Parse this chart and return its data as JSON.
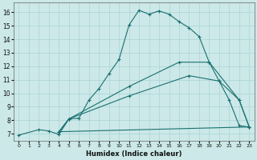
{
  "xlabel": "Humidex (Indice chaleur)",
  "bg_color": "#cce8e8",
  "line_color": "#1a7070",
  "grid_color": "#aad4d4",
  "xlim": [
    -0.5,
    23.5
  ],
  "ylim": [
    6.5,
    16.7
  ],
  "xticks": [
    0,
    1,
    2,
    3,
    4,
    5,
    6,
    7,
    8,
    9,
    10,
    11,
    12,
    13,
    14,
    15,
    16,
    17,
    18,
    19,
    20,
    21,
    22,
    23
  ],
  "yticks": [
    7,
    8,
    9,
    10,
    11,
    12,
    13,
    14,
    15,
    16
  ],
  "curve1_x": [
    0,
    2,
    3,
    4,
    5,
    6,
    7,
    8,
    9,
    10,
    11,
    12,
    13,
    14,
    15,
    16,
    17,
    18,
    19,
    20,
    21,
    22,
    23
  ],
  "curve1_y": [
    6.9,
    7.3,
    7.2,
    6.95,
    8.1,
    8.15,
    9.5,
    10.35,
    11.45,
    12.5,
    15.05,
    16.15,
    15.85,
    16.1,
    15.85,
    15.3,
    14.85,
    14.2,
    12.3,
    10.9,
    9.5,
    7.6,
    7.5
  ],
  "curve2_x": [
    4,
    5,
    11,
    16,
    19,
    22,
    23
  ],
  "curve2_y": [
    7.15,
    8.1,
    10.5,
    12.3,
    12.3,
    9.5,
    7.5
  ],
  "curve3_x": [
    4,
    5,
    11,
    17,
    20,
    22,
    23
  ],
  "curve3_y": [
    7.15,
    8.1,
    9.8,
    11.3,
    10.9,
    9.5,
    7.5
  ],
  "curve4_x": [
    4,
    23
  ],
  "curve4_y": [
    7.15,
    7.5
  ]
}
